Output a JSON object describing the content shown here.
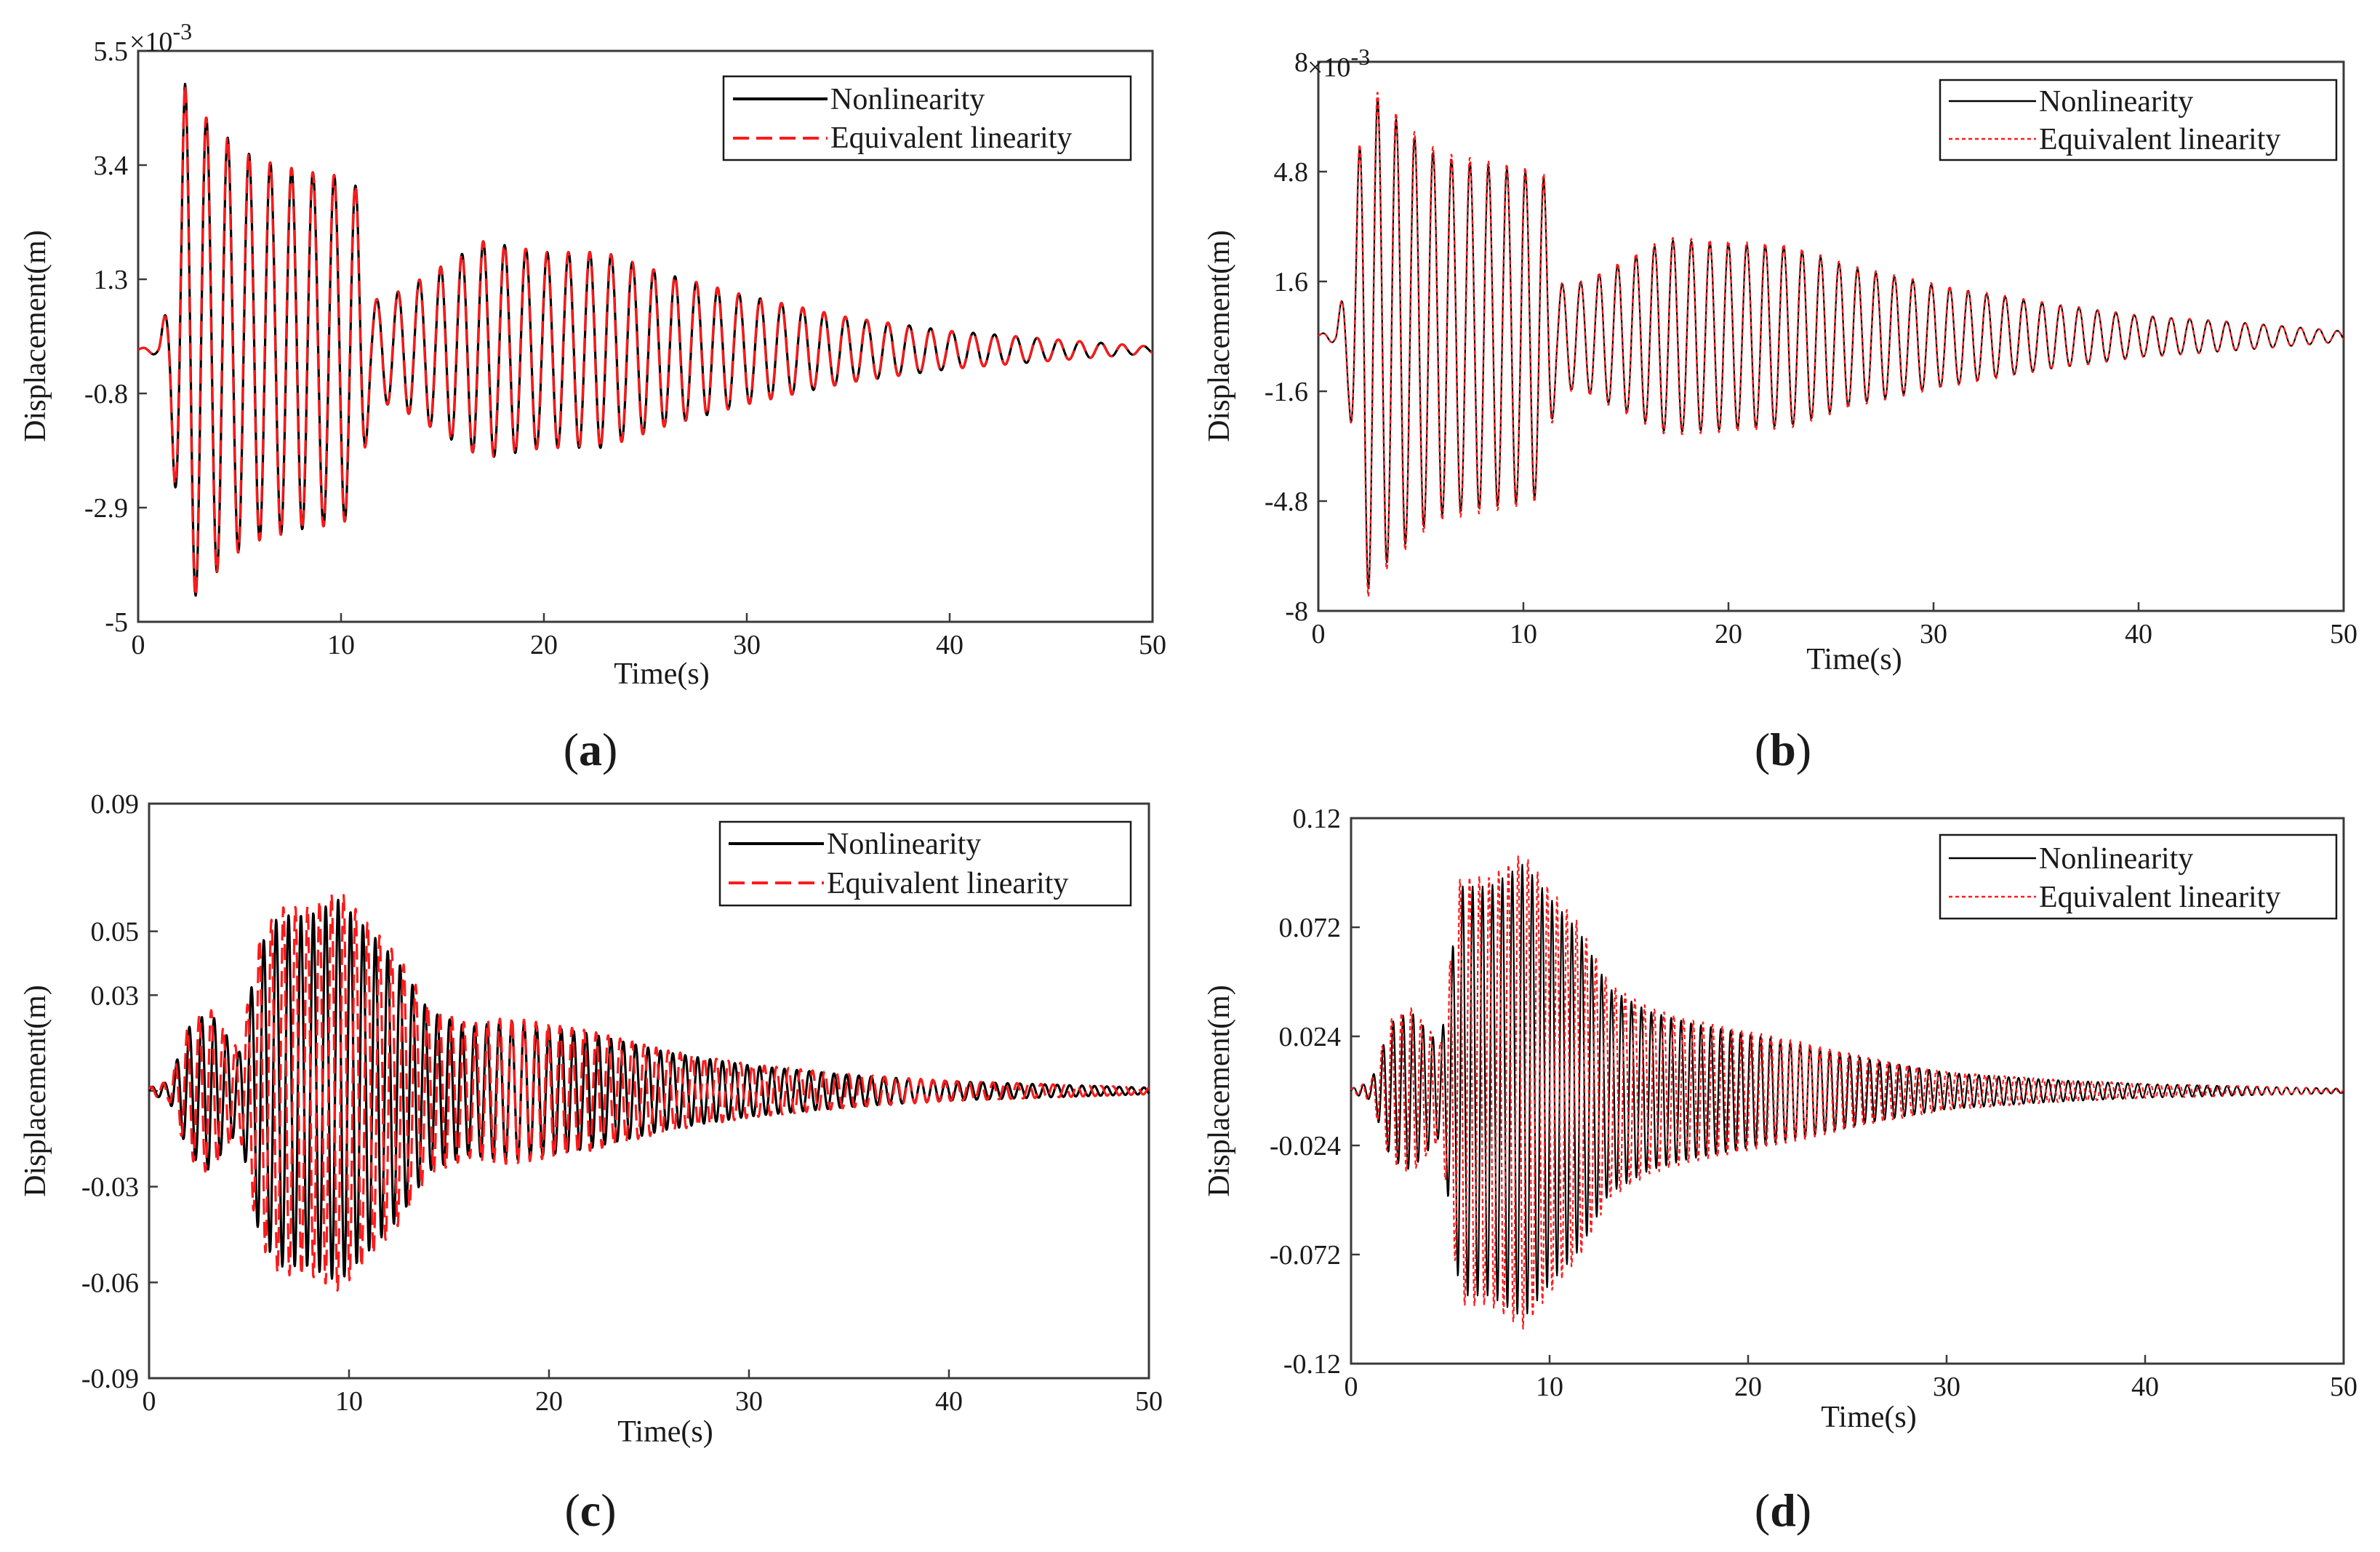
{
  "chart_data": [
    {
      "type": "line",
      "panel": "a",
      "caption_open": "(",
      "caption_letter": "a",
      "caption_close": ")",
      "xlabel": "Time(s)",
      "ylabel": "Displacement(m)",
      "xlim": [
        0,
        50
      ],
      "ylim": [
        -5,
        5.5
      ],
      "exponent_label": "×10",
      "exponent_power": "-3",
      "xticks": [
        0,
        10,
        20,
        30,
        40,
        50
      ],
      "xtick_labels": [
        "0",
        "10",
        "20",
        "30",
        "40",
        "50"
      ],
      "yticks": [
        -5,
        -2.9,
        -0.8,
        1.3,
        3.4,
        5.5
      ],
      "ytick_labels": [
        "-5",
        "-2.9",
        "-0.8",
        "1.3",
        "3.4",
        "5.5"
      ],
      "legend": [
        "Nonlinearity",
        "Equivalent linearity"
      ],
      "legend_position": "top-right",
      "series": [
        {
          "name": "Nonlinearity",
          "color": "#000000",
          "style": "solid"
        },
        {
          "name": "Equivalent linearity",
          "color": "#ff1a1a",
          "style": "dashed"
        }
      ],
      "envelope": {
        "t": [
          0,
          1.0,
          1.5,
          2.3,
          3.0,
          5,
          6,
          8,
          10,
          10.8,
          11.5,
          13,
          17,
          20,
          23,
          26,
          30,
          35,
          40,
          45,
          50
        ],
        "amp": [
          0.02,
          0.1,
          1.0,
          4.9,
          4.4,
          3.7,
          3.5,
          3.3,
          3.2,
          3.0,
          0.9,
          1.1,
          2.0,
          1.8,
          1.8,
          1.4,
          1.0,
          0.6,
          0.35,
          0.2,
          0.06
        ]
      },
      "period": 1.05,
      "phase": 0.3,
      "baseline": 0.0,
      "offsets": [
        0,
        0.08
      ],
      "ampfactors": [
        1,
        1
      ],
      "red_scale": 1,
      "red_amp": 1
    },
    {
      "type": "line",
      "panel": "b",
      "caption_open": "(",
      "caption_letter": "b",
      "caption_close": ")",
      "xlabel": "Time(s)",
      "ylabel": "Displacement(m)",
      "xlim": [
        0,
        50
      ],
      "ylim": [
        -8,
        8
      ],
      "exponent_label": "×10",
      "exponent_power": "-3",
      "xticks": [
        0,
        10,
        20,
        30,
        40,
        50
      ],
      "xtick_labels": [
        "0",
        "10",
        "20",
        "30",
        "40",
        "50"
      ],
      "yticks": [
        -8,
        -4.8,
        -1.6,
        1.6,
        4.8,
        8
      ],
      "ytick_labels": [
        "-8",
        "-4.8",
        "-1.6",
        "1.6",
        "4.8",
        "8"
      ],
      "legend": [
        "Nonlinearity",
        "Equivalent linearity"
      ],
      "legend_position": "top-right",
      "series": [
        {
          "name": "Nonlinearity",
          "color": "#000000",
          "style": "solid"
        },
        {
          "name": "Equivalent linearity",
          "color": "#ff1a1a",
          "style": "dotted"
        }
      ],
      "envelope": {
        "t": [
          0,
          0.8,
          1.5,
          2.3,
          3.0,
          5,
          6,
          8,
          10,
          11,
          11.6,
          13,
          17,
          20,
          23,
          26,
          30,
          35,
          40,
          45,
          50
        ],
        "amp": [
          0.05,
          0.2,
          2.0,
          7.5,
          6.8,
          5.6,
          5.2,
          5.0,
          4.8,
          4.6,
          1.5,
          1.6,
          2.8,
          2.7,
          2.6,
          2.0,
          1.5,
          1.0,
          0.6,
          0.4,
          0.15
        ]
      },
      "period": 0.9,
      "phase": 0.2,
      "baseline": 0.0,
      "offsets": [
        0,
        0.06
      ],
      "ampfactors": [
        1,
        1.03
      ],
      "red_scale": 1,
      "red_amp": 1
    },
    {
      "type": "line",
      "panel": "c",
      "caption_open": "(",
      "caption_letter": "c",
      "caption_close": ")",
      "xlabel": "Time(s)",
      "ylabel": "Displacement(m)",
      "xlim": [
        0,
        50
      ],
      "ylim": [
        -0.09,
        0.09
      ],
      "exponent_label": "",
      "exponent_power": "",
      "xticks": [
        0,
        10,
        20,
        30,
        40,
        50
      ],
      "xtick_labels": [
        "0",
        "10",
        "20",
        "30",
        "40",
        "50"
      ],
      "yticks": [
        -0.09,
        -0.06,
        -0.03,
        0.0,
        0.03,
        0.05,
        0.09
      ],
      "ytick_labels": [
        "-0.09",
        "-0.06",
        "-0.03",
        "",
        "0.03",
        "0.05",
        "0.09"
      ],
      "legend": [
        "Nonlinearity",
        "Equivalent linearity"
      ],
      "legend_position": "top-right",
      "series": [
        {
          "name": "Nonlinearity",
          "color": "#000000",
          "style": "solid"
        },
        {
          "name": "Equivalent linearity",
          "color": "#ff1a1a",
          "style": "dashed"
        }
      ],
      "envelope": {
        "t": [
          0,
          1.0,
          2.0,
          3.0,
          4.5,
          5.5,
          6.5,
          8,
          9.5,
          11,
          12.5,
          14,
          16,
          18,
          22,
          26,
          30,
          35,
          40,
          45,
          50
        ],
        "amp": [
          0.001,
          0.003,
          0.02,
          0.025,
          0.012,
          0.045,
          0.055,
          0.055,
          0.06,
          0.05,
          0.04,
          0.025,
          0.02,
          0.022,
          0.018,
          0.012,
          0.008,
          0.005,
          0.003,
          0.002,
          0.001
        ]
      },
      "period": 0.62,
      "phase": 0.0,
      "baseline": 0.0,
      "offsets": [
        0,
        0.5
      ],
      "ampfactors": [
        1,
        1
      ],
      "red_scale": 0.97,
      "red_amp": 1.05
    },
    {
      "type": "line",
      "panel": "d",
      "caption_open": "(",
      "caption_letter": "d",
      "caption_close": ")",
      "xlabel": "Time(s)",
      "ylabel": "Displacement(m)",
      "xlim": [
        0,
        50
      ],
      "ylim": [
        -0.12,
        0.12
      ],
      "exponent_label": "",
      "exponent_power": "",
      "xticks": [
        0,
        10,
        20,
        30,
        40,
        50
      ],
      "xtick_labels": [
        "0",
        "10",
        "20",
        "30",
        "40",
        "50"
      ],
      "yticks": [
        -0.12,
        -0.072,
        -0.024,
        0.024,
        0.072,
        0.12
      ],
      "ytick_labels": [
        "-0.12",
        "-0.072",
        "-0.024",
        "0.024",
        "0.072",
        "0.12"
      ],
      "legend": [
        "Nonlinearity",
        "Equivalent linearity"
      ],
      "legend_position": "top-right",
      "series": [
        {
          "name": "Nonlinearity",
          "color": "#000000",
          "style": "solid"
        },
        {
          "name": "Equivalent linearity",
          "color": "#ff1a1a",
          "style": "dotted"
        }
      ],
      "envelope": {
        "t": [
          0,
          1.0,
          2.0,
          3.0,
          4.5,
          5.5,
          7,
          8.7,
          10,
          11.5,
          13,
          15,
          17,
          20,
          23,
          26,
          30,
          35,
          40,
          45,
          50
        ],
        "amp": [
          0.001,
          0.004,
          0.03,
          0.035,
          0.02,
          0.09,
          0.09,
          0.1,
          0.085,
          0.07,
          0.045,
          0.035,
          0.03,
          0.025,
          0.02,
          0.014,
          0.008,
          0.005,
          0.003,
          0.002,
          0.001
        ]
      },
      "period": 0.5,
      "phase": 0.0,
      "baseline": 0.0,
      "offsets": [
        0,
        0.45
      ],
      "ampfactors": [
        1,
        1
      ],
      "red_scale": 0.98,
      "red_amp": 1.05
    }
  ]
}
